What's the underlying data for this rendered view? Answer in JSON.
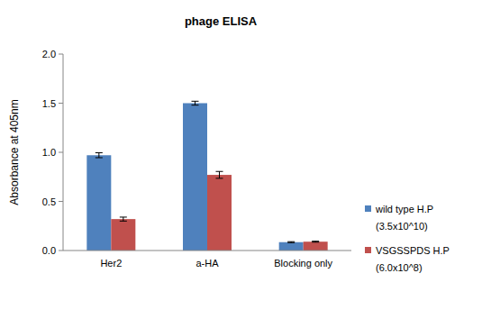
{
  "chart_data": {
    "type": "bar",
    "title": "phage ELISA",
    "y_label": "Absorbance at 405nm",
    "categories": [
      "Her2",
      "a-HA",
      "Blocking only"
    ],
    "series": [
      {
        "name": "wild type H.P",
        "legend_detail": "(3.5x10^10)",
        "color": "#4f81bd",
        "values": [
          0.97,
          1.5,
          0.085
        ],
        "errors": [
          0.025,
          0.02,
          0.005
        ]
      },
      {
        "name": "VSGSSPDS H.P",
        "legend_detail": "(6.0x10^8)",
        "color": "#c0504d",
        "values": [
          0.32,
          0.77,
          0.09
        ],
        "errors": [
          0.02,
          0.035,
          0.005
        ]
      }
    ],
    "ylim": [
      0,
      2
    ],
    "yticks": [
      {
        "value": 0,
        "label": "0.0"
      },
      {
        "value": 0.5,
        "label": "0.5"
      },
      {
        "value": 1,
        "label": "1.0"
      },
      {
        "value": 1.5,
        "label": "1.5"
      },
      {
        "value": 2,
        "label": "2.0"
      }
    ],
    "grid": false,
    "legend": "right"
  }
}
